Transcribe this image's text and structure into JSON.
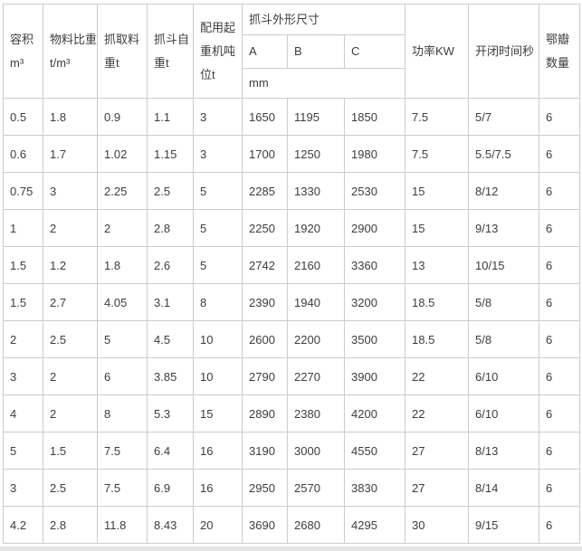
{
  "theme": {
    "border_color": "#cccccc",
    "text_color": "#3d3d3d",
    "strip_color": "#e2e2e2",
    "background_color": "#ffffff"
  },
  "table": {
    "header": {
      "volume": "容积\nm³",
      "material_density": "物料比重\nt/m³",
      "grab_material_weight": "抓取料\n重t",
      "bucket_self_weight": "抓斗自\n重t",
      "crane_tonnage": "配用起\n重机吨\n位t",
      "dimensions_group": "抓斗外形尺寸",
      "dim_a": "A",
      "dim_b": "B",
      "dim_c": "C",
      "dim_unit": "mm",
      "power": "功率KW",
      "open_close_time": "开闭时间秒",
      "jaw_count": "鄂瓣\n数量"
    },
    "rows": [
      [
        "0.5",
        "1.8",
        "0.9",
        "1.1",
        "3",
        "1650",
        "1195",
        "1850",
        "7.5",
        "5/7",
        "6"
      ],
      [
        "0.6",
        "1.7",
        "1.02",
        "1.15",
        "3",
        "1700",
        "1250",
        "1980",
        "7.5",
        "5.5/7.5",
        "6"
      ],
      [
        "0.75",
        "3",
        "2.25",
        "2.5",
        "5",
        "2285",
        "1330",
        "2530",
        "15",
        "8/12",
        "6"
      ],
      [
        "1",
        "2",
        "2",
        "2.8",
        "5",
        "2250",
        "1920",
        "2900",
        "15",
        "9/13",
        "6"
      ],
      [
        "1.5",
        "1.2",
        "1.8",
        "2.6",
        "5",
        "2742",
        "2160",
        "3360",
        "13",
        "10/15",
        "6"
      ],
      [
        "1.5",
        "2.7",
        "4.05",
        "3.1",
        "8",
        "2390",
        "1940",
        "3200",
        "18.5",
        "5/8",
        "6"
      ],
      [
        "2",
        "2.5",
        "5",
        "4.5",
        "10",
        "2600",
        "2200",
        "3500",
        "18.5",
        "5/8",
        "6"
      ],
      [
        "3",
        "2",
        "6",
        "3.85",
        "10",
        "2790",
        "2270",
        "3900",
        "22",
        "6/10",
        "6"
      ],
      [
        "4",
        "2",
        "8",
        "5.3",
        "15",
        "2890",
        "2380",
        "4200",
        "22",
        "6/10",
        "6"
      ],
      [
        "5",
        "1.5",
        "7.5",
        "6.4",
        "16",
        "3190",
        "3000",
        "4550",
        "27",
        "8/13",
        "6"
      ],
      [
        "3",
        "2.5",
        "7.5",
        "6.9",
        "16",
        "2950",
        "2570",
        "3830",
        "27",
        "8/14",
        "6"
      ],
      [
        "4.2",
        "2.8",
        "11.8",
        "8.43",
        "20",
        "3690",
        "2680",
        "4295",
        "30",
        "9/15",
        "6"
      ]
    ]
  }
}
